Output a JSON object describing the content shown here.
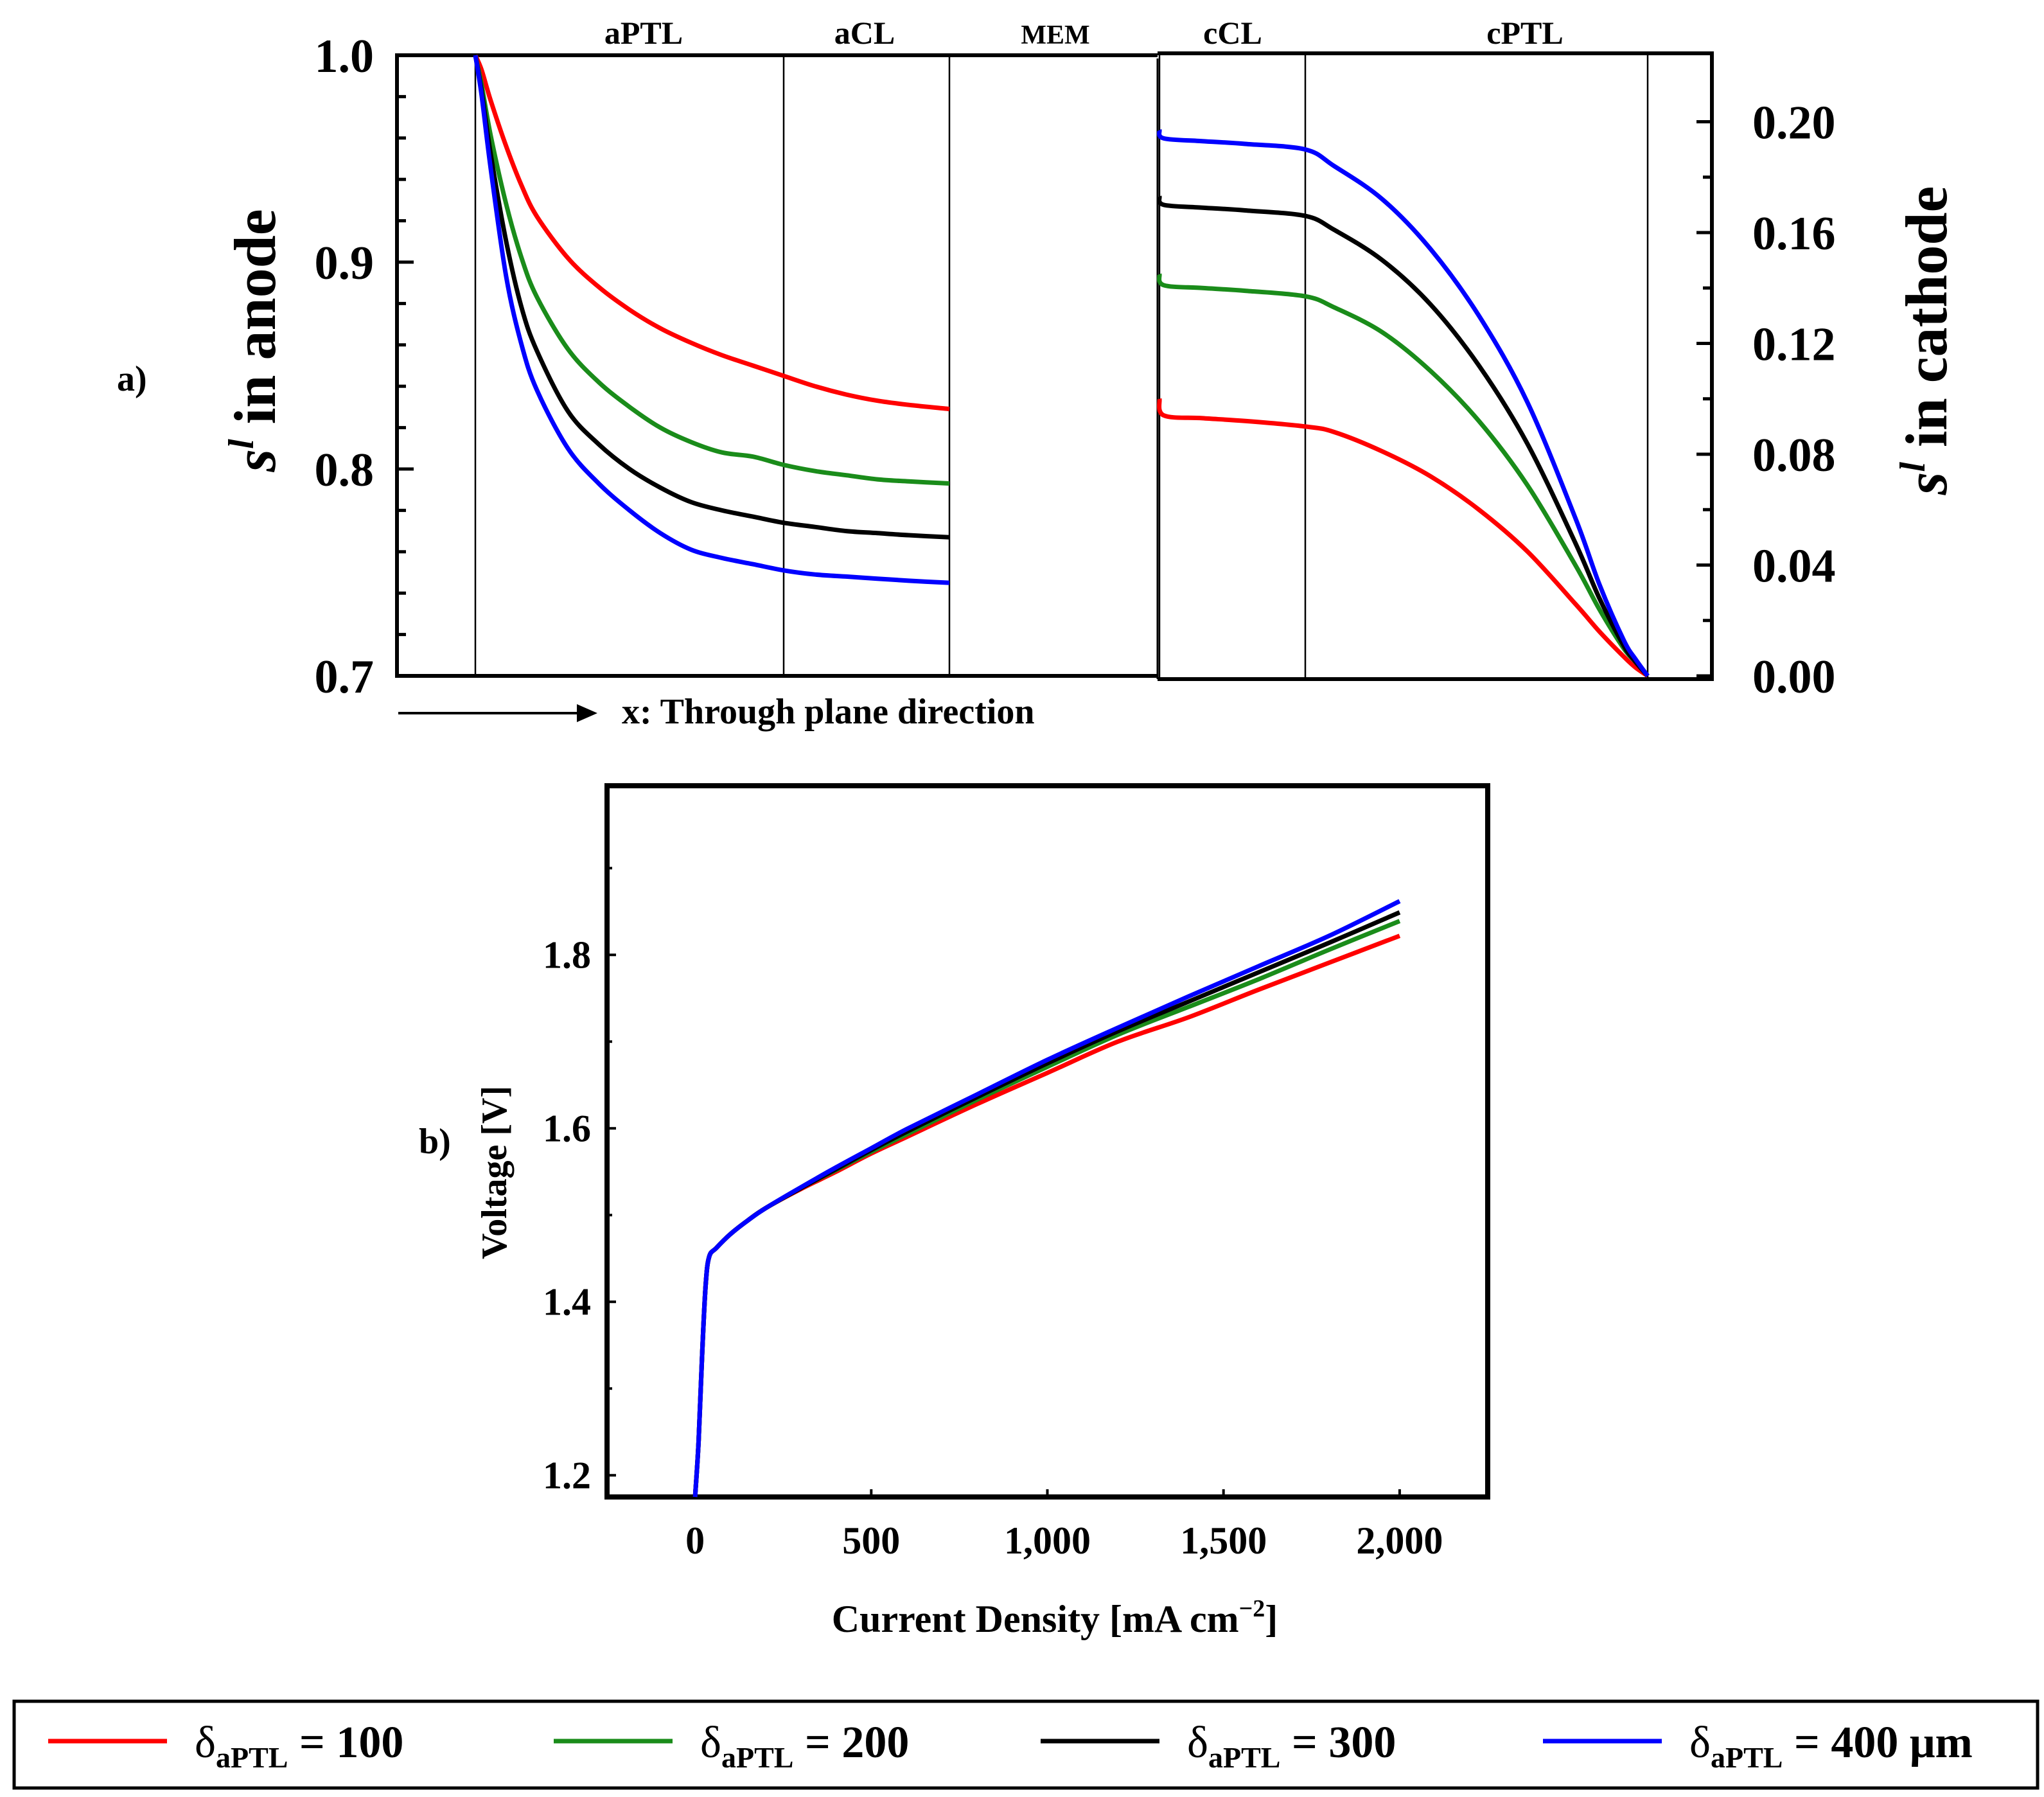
{
  "figure": {
    "panel_a_label": "a)",
    "panel_b_label": "b)"
  },
  "colors": {
    "s100": "#ff0000",
    "s200": "#1a8c1a",
    "s300": "#000000",
    "s400": "#0000ff"
  },
  "legend": {
    "items": [
      {
        "sym": "δ",
        "sub": "aPTL",
        "text": " = 100",
        "color_key": "s100"
      },
      {
        "sym": "δ",
        "sub": "aPTL",
        "text": " = 200",
        "color_key": "s200"
      },
      {
        "sym": "δ",
        "sub": "aPTL",
        "text": " = 300",
        "color_key": "s300"
      },
      {
        "sym": "δ",
        "sub": "aPTL",
        "text": " = 400 μm",
        "color_key": "s400"
      }
    ]
  },
  "chart_data": [
    {
      "type": "line",
      "title": "",
      "xlabel": "x: Through plane direction",
      "ylabel_left": {
        "main": "s",
        "sup": "l",
        "rest": " in anode"
      },
      "ylabel_right": {
        "main": "s",
        "sup": "l",
        "rest": " in cathode"
      },
      "regions": [
        "aPTL",
        "aCL",
        "MEM",
        "cCL",
        "cPTL"
      ],
      "region_bounds": [
        0,
        1.0,
        0.53,
        0.68
      ],
      "ylim_left": [
        0.7,
        1.0
      ],
      "yticks_left": [
        0.7,
        0.8,
        0.9,
        1.0
      ],
      "ytick_labels_left": [
        "0.7",
        "0.8",
        "0.9",
        "1.0"
      ],
      "ylim_right": [
        0.0,
        0.224
      ],
      "yticks_right": [
        0.0,
        0.04,
        0.08,
        0.12,
        0.16,
        0.2
      ],
      "ytick_labels_right": [
        "0.00",
        "0.04",
        "0.08",
        "0.12",
        "0.16",
        "0.20"
      ],
      "anode_x": [
        0,
        0.02,
        0.05,
        0.1,
        0.15,
        0.2,
        0.3,
        0.4,
        0.5,
        0.6,
        0.7,
        0.8,
        0.9,
        1.0,
        1.1,
        1.2,
        1.3,
        1.4,
        1.53
      ],
      "cathode_x": [
        0,
        0.02,
        0.2,
        0.4,
        0.68,
        0.8,
        1.0,
        1.2,
        1.4,
        1.6,
        1.8,
        1.9,
        2.0,
        2.05,
        2.1
      ],
      "series": [
        {
          "name": "δaPTL = 100",
          "color_key": "s100",
          "anode_y": [
            1.0,
            0.993,
            0.978,
            0.956,
            0.937,
            0.922,
            0.902,
            0.888,
            0.877,
            0.868,
            0.861,
            0.855,
            0.85,
            0.845,
            0.84,
            0.836,
            0.833,
            0.831,
            0.829
          ],
          "cathode_y": [
            0.1,
            0.094,
            0.093,
            0.092,
            0.09,
            0.088,
            0.081,
            0.072,
            0.06,
            0.045,
            0.026,
            0.016,
            0.007,
            0.003,
            0.0
          ]
        },
        {
          "name": "δaPTL = 200",
          "color_key": "s200",
          "anode_y": [
            1.0,
            0.986,
            0.961,
            0.928,
            0.902,
            0.883,
            0.858,
            0.842,
            0.83,
            0.82,
            0.813,
            0.808,
            0.806,
            0.802,
            0.799,
            0.797,
            0.795,
            0.794,
            0.793
          ],
          "cathode_y": [
            0.145,
            0.141,
            0.14,
            0.139,
            0.137,
            0.133,
            0.124,
            0.11,
            0.092,
            0.069,
            0.04,
            0.024,
            0.01,
            0.005,
            0.0
          ]
        },
        {
          "name": "δaPTL = 300",
          "color_key": "s300",
          "anode_y": [
            1.0,
            0.983,
            0.952,
            0.91,
            0.878,
            0.857,
            0.828,
            0.812,
            0.8,
            0.791,
            0.784,
            0.78,
            0.777,
            0.774,
            0.772,
            0.77,
            0.769,
            0.768,
            0.767
          ],
          "cathode_y": [
            0.173,
            0.17,
            0.169,
            0.168,
            0.166,
            0.161,
            0.15,
            0.134,
            0.112,
            0.084,
            0.048,
            0.028,
            0.011,
            0.005,
            0.0
          ]
        },
        {
          "name": "δaPTL = 400 μm",
          "color_key": "s400",
          "anode_y": [
            1.0,
            0.981,
            0.945,
            0.893,
            0.86,
            0.838,
            0.81,
            0.793,
            0.78,
            0.769,
            0.761,
            0.757,
            0.754,
            0.751,
            0.749,
            0.748,
            0.747,
            0.746,
            0.745
          ],
          "cathode_y": [
            0.197,
            0.194,
            0.193,
            0.192,
            0.19,
            0.184,
            0.172,
            0.154,
            0.13,
            0.099,
            0.057,
            0.033,
            0.013,
            0.006,
            0.0
          ]
        }
      ]
    },
    {
      "type": "line",
      "title": "",
      "xlabel": "Current Density [mA cm−2]",
      "xlabel_main": "Current Density [mA cm",
      "xlabel_sup": "−2",
      "xlabel_end": "]",
      "ylabel": "Voltage [V]",
      "xlim": [
        -250,
        2250
      ],
      "ylim": [
        1.175,
        1.995
      ],
      "xticks": [
        0,
        500,
        1000,
        1500,
        2000
      ],
      "xtick_labels": [
        "0",
        "500",
        "1,000",
        "1,500",
        "2,000"
      ],
      "yticks": [
        1.2,
        1.4,
        1.6,
        1.8
      ],
      "ytick_labels": [
        "1.2",
        "1.4",
        "1.6",
        "1.8"
      ],
      "x": [
        0,
        10,
        20,
        30,
        40,
        60,
        100,
        150,
        200,
        300,
        400,
        500,
        600,
        800,
        1000,
        1200,
        1400,
        1600,
        1800,
        2000
      ],
      "series": [
        {
          "name": "δaPTL = 100",
          "color_key": "s100",
          "y": [
            1.175,
            1.24,
            1.34,
            1.42,
            1.452,
            1.462,
            1.478,
            1.494,
            1.508,
            1.53,
            1.55,
            1.571,
            1.59,
            1.628,
            1.664,
            1.7,
            1.728,
            1.76,
            1.791,
            1.822
          ]
        },
        {
          "name": "δaPTL = 200",
          "color_key": "s200",
          "y": [
            1.175,
            1.24,
            1.34,
            1.42,
            1.452,
            1.462,
            1.478,
            1.494,
            1.508,
            1.531,
            1.552,
            1.573,
            1.593,
            1.633,
            1.671,
            1.708,
            1.74,
            1.772,
            1.806,
            1.839
          ]
        },
        {
          "name": "δaPTL = 300",
          "color_key": "s300",
          "y": [
            1.175,
            1.24,
            1.34,
            1.42,
            1.452,
            1.462,
            1.478,
            1.494,
            1.508,
            1.531,
            1.553,
            1.575,
            1.596,
            1.636,
            1.675,
            1.712,
            1.746,
            1.78,
            1.814,
            1.849
          ]
        },
        {
          "name": "δaPTL = 400 μm",
          "color_key": "s400",
          "y": [
            1.175,
            1.24,
            1.34,
            1.42,
            1.452,
            1.462,
            1.478,
            1.494,
            1.508,
            1.532,
            1.555,
            1.577,
            1.599,
            1.639,
            1.679,
            1.716,
            1.752,
            1.787,
            1.822,
            1.862
          ]
        }
      ]
    }
  ]
}
